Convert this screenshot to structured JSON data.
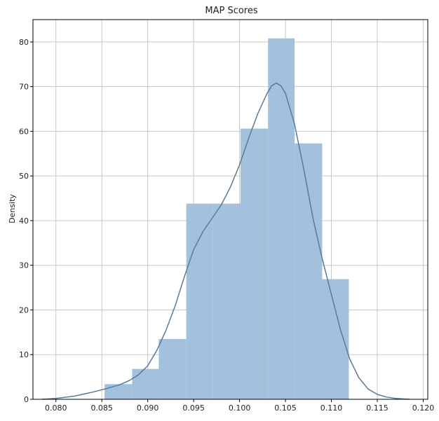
{
  "chart_data": {
    "type": "histogram",
    "title": "MAP Scores",
    "xlabel": "",
    "ylabel": "Density",
    "xlim": [
      0.0775,
      0.1205
    ],
    "ylim": [
      0,
      85
    ],
    "xticks": [
      0.08,
      0.085,
      0.09,
      0.095,
      0.1,
      0.105,
      0.11,
      0.115,
      0.12
    ],
    "xtick_labels": [
      "0.080",
      "0.085",
      "0.090",
      "0.095",
      "0.100",
      "0.105",
      "0.110",
      "0.115",
      "0.120"
    ],
    "yticks": [
      0,
      10,
      20,
      30,
      40,
      50,
      60,
      70,
      80
    ],
    "ytick_labels": [
      "0",
      "10",
      "20",
      "30",
      "40",
      "50",
      "60",
      "70",
      "80"
    ],
    "grid": true,
    "bins": [
      {
        "x0": 0.0853,
        "x1": 0.0883,
        "value": 3.4
      },
      {
        "x0": 0.0883,
        "x1": 0.0912,
        "value": 6.8
      },
      {
        "x0": 0.0912,
        "x1": 0.0942,
        "value": 13.5
      },
      {
        "x0": 0.0942,
        "x1": 0.0971,
        "value": 43.8
      },
      {
        "x0": 0.0971,
        "x1": 0.1001,
        "value": 43.8
      },
      {
        "x0": 0.1001,
        "x1": 0.1031,
        "value": 60.6
      },
      {
        "x0": 0.1031,
        "x1": 0.106,
        "value": 80.8
      },
      {
        "x0": 0.106,
        "x1": 0.109,
        "value": 57.3
      },
      {
        "x0": 0.109,
        "x1": 0.1119,
        "value": 26.9
      }
    ],
    "kde": {
      "x": [
        0.0785,
        0.08,
        0.082,
        0.084,
        0.0855,
        0.087,
        0.088,
        0.089,
        0.09,
        0.091,
        0.092,
        0.093,
        0.094,
        0.095,
        0.096,
        0.097,
        0.098,
        0.099,
        0.1,
        0.101,
        0.102,
        0.103,
        0.1035,
        0.104,
        0.1045,
        0.105,
        0.106,
        0.107,
        0.108,
        0.109,
        0.11,
        0.111,
        0.112,
        0.113,
        0.114,
        0.115,
        0.116,
        0.117,
        0.118,
        0.1185
      ],
      "y": [
        0.0,
        0.2,
        0.7,
        1.6,
        2.4,
        3.3,
        4.2,
        5.5,
        7.5,
        11.0,
        15.5,
        21.0,
        27.5,
        33.5,
        37.5,
        40.5,
        43.5,
        47.5,
        52.5,
        58.5,
        64.0,
        68.5,
        70.2,
        70.8,
        70.2,
        68.5,
        61.5,
        51.5,
        40.5,
        31.5,
        23.5,
        15.5,
        9.0,
        4.8,
        2.3,
        1.1,
        0.5,
        0.2,
        0.05,
        0.0
      ]
    },
    "colors": {
      "bar": "#a3c1dc",
      "kde_line": "#5b7a99",
      "grid": "#c8c8c8",
      "axis": "#000000"
    }
  }
}
